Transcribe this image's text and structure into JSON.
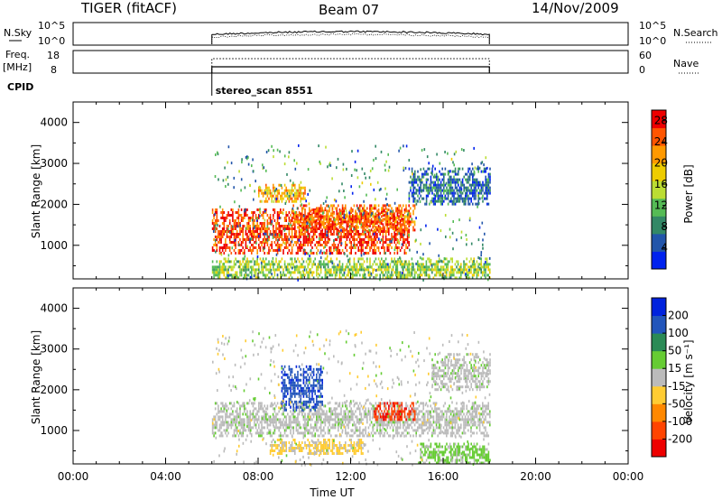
{
  "header": {
    "radar_title": "TIGER (fitACF)",
    "beam_label": "Beam 07",
    "date": "14/Nov/2009"
  },
  "status_strip": {
    "nsky_label": "N.Sky",
    "nsearch_label": "N.Search",
    "nsky_ticks": [
      "10^5",
      "10^0"
    ],
    "nsearch_ticks": [
      "10^5",
      "10^0"
    ],
    "freq_label_line1": "Freq.",
    "freq_label_line2": "[MHz]",
    "freq_ticks": [
      "18",
      "8"
    ],
    "nave_label": "Nave",
    "nave_ticks": [
      "60",
      "0"
    ],
    "cpid_label": "CPID",
    "cpid_value": "stereo_scan 8551"
  },
  "colors": {
    "power_scale": [
      "#0022ee",
      "#2255aa",
      "#338866",
      "#55bb55",
      "#bbdd33",
      "#eecc00",
      "#ff9900",
      "#ff5500",
      "#ee0000"
    ],
    "velocity_scale": [
      "#0022dd",
      "#2255bb",
      "#2a8a55",
      "#66cc33",
      "#bbbbbb",
      "#ffcc33",
      "#ff8800",
      "#ff4400",
      "#ee0000"
    ],
    "gray_scatter": "#bbbbbb"
  },
  "chart_data": [
    {
      "type": "heatmap",
      "name": "power",
      "ylabel": "Slant Range [km]",
      "xlabel": "",
      "x_range_hours": [
        0,
        24
      ],
      "ylim": [
        180,
        4500
      ],
      "y_ticks": [
        "1000",
        "2000",
        "3000",
        "4000"
      ],
      "x_ticks": [
        "00:00",
        "04:00",
        "08:00",
        "12:00",
        "16:00",
        "20:00",
        "00:00"
      ],
      "colorbar": {
        "label": "Power [dB]",
        "ticks": [
          "4",
          "8",
          "12",
          "16",
          "20",
          "24",
          "28"
        ],
        "range": [
          0,
          30
        ]
      },
      "data_window_hours": [
        6,
        18
      ],
      "regions_description_free": true,
      "echo_bands": [
        {
          "t_start": 6.0,
          "t_end": 14.5,
          "r_low": 800,
          "r_high": 1900,
          "level_db": 26
        },
        {
          "t_start": 9.5,
          "t_end": 14.8,
          "r_low": 1400,
          "r_high": 2000,
          "level_db": 24
        },
        {
          "t_start": 8.0,
          "t_end": 10.0,
          "r_low": 2100,
          "r_high": 2500,
          "level_db": 20
        },
        {
          "t_start": 14.5,
          "t_end": 18.0,
          "r_low": 2000,
          "r_high": 2900,
          "level_db": 6
        },
        {
          "t_start": 6.0,
          "t_end": 18.0,
          "r_low": 180,
          "r_high": 700,
          "level_db": 14
        }
      ]
    },
    {
      "type": "heatmap",
      "name": "velocity",
      "ylabel": "Slant Range [km]",
      "xlabel": "Time UT",
      "x_range_hours": [
        0,
        24
      ],
      "ylim": [
        180,
        4500
      ],
      "y_ticks": [
        "1000",
        "2000",
        "3000",
        "4000"
      ],
      "x_ticks": [
        "00:00",
        "04:00",
        "08:00",
        "12:00",
        "16:00",
        "20:00",
        "00:00"
      ],
      "colorbar": {
        "label": "Velocity [m s⁻¹]",
        "ticks": [
          "200",
          "100",
          "50",
          "15",
          "-15",
          "-50",
          "-100",
          "-200"
        ],
        "range": [
          -250,
          250
        ]
      },
      "data_window_hours": [
        6,
        18
      ],
      "echo_bands": [
        {
          "t_start": 6.0,
          "t_end": 18.0,
          "r_low": 900,
          "r_high": 1700,
          "velocity": 0
        },
        {
          "t_start": 9.0,
          "t_end": 10.8,
          "r_low": 1500,
          "r_high": 2600,
          "velocity": 200
        },
        {
          "t_start": 13.0,
          "t_end": 14.8,
          "r_low": 1250,
          "r_high": 1700,
          "velocity": -200
        },
        {
          "t_start": 8.5,
          "t_end": 12.5,
          "r_low": 450,
          "r_high": 800,
          "velocity": -50
        },
        {
          "t_start": 15.0,
          "t_end": 18.0,
          "r_low": 180,
          "r_high": 700,
          "velocity": 50
        },
        {
          "t_start": 15.5,
          "t_end": 18.0,
          "r_low": 2000,
          "r_high": 2900,
          "velocity": 0
        }
      ]
    }
  ]
}
